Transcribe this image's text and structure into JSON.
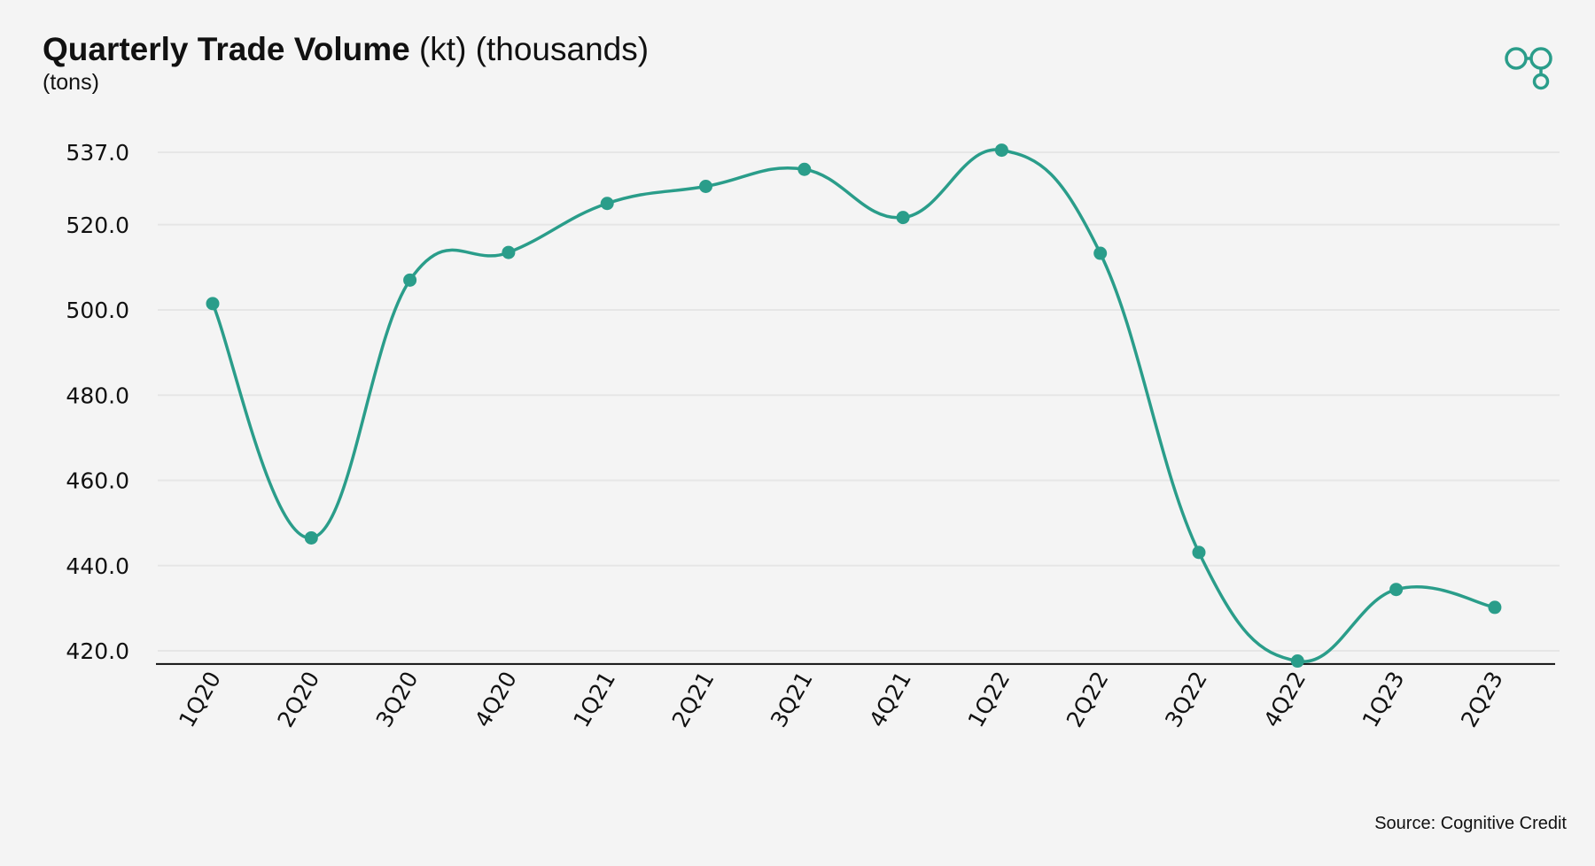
{
  "header": {
    "title_bold": "Quarterly Trade Volume",
    "title_units": "(kt) (thousands)",
    "subtitle": "(tons)"
  },
  "logo": {
    "icon": "chain-link-logo-icon",
    "color": "#2a9d8a"
  },
  "source": "Source: Cognitive Credit",
  "chart_data": {
    "type": "line",
    "title": "Quarterly Trade Volume (kt) (thousands)",
    "subtitle": "(tons)",
    "xlabel": "",
    "ylabel": "",
    "categories": [
      "1Q20",
      "2Q20",
      "3Q20",
      "4Q20",
      "1Q21",
      "2Q21",
      "3Q21",
      "4Q21",
      "1Q22",
      "2Q22",
      "3Q22",
      "4Q22",
      "1Q23",
      "2Q23"
    ],
    "series": [
      {
        "values": [
          501.5,
          446.5,
          507.0,
          513.5,
          525.0,
          529.0,
          533.0,
          521.7,
          537.5,
          513.3,
          443.1,
          417.6,
          434.4,
          430.2
        ]
      }
    ],
    "yticks": [
      420.0,
      440.0,
      460.0,
      480.0,
      500.0,
      520.0,
      537.0
    ],
    "ytick_labels": [
      "420.0",
      "440.0",
      "460.0",
      "480.0",
      "500.0",
      "520.0",
      "537.0"
    ],
    "ylim": [
      416.5,
      539
    ],
    "grid": true,
    "line_style": "smooth",
    "markers": true,
    "color": "#2a9d8a",
    "gridline_color": "#e6e6e6",
    "axis_color": "#111111"
  }
}
